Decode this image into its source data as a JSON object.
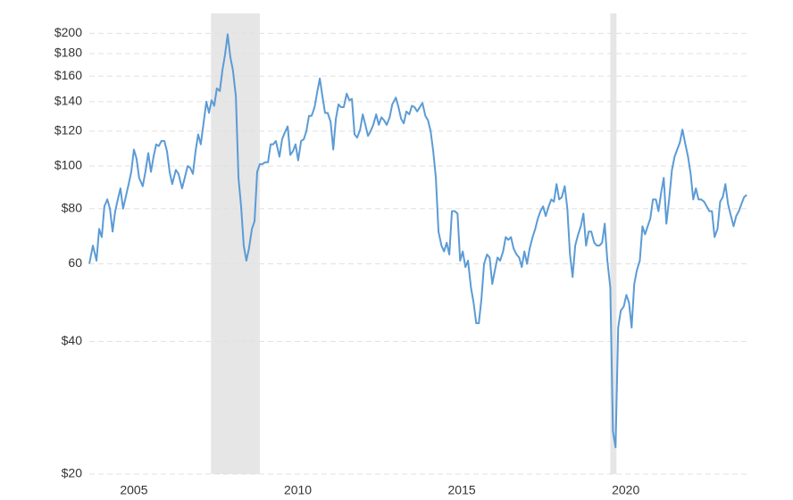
{
  "chart_data": {
    "type": "line",
    "log_y": true,
    "grid": true,
    "shaded_ranges": [
      [
        2007.35,
        2008.84
      ],
      [
        2019.53,
        2019.72
      ]
    ],
    "shade_color": "#e6e6e6",
    "xlim": [
      2003.64,
      2023.74
    ],
    "xticks": [
      2005,
      2010,
      2015,
      2020
    ],
    "ylim": [
      20,
      222
    ],
    "yticks": [
      {
        "value": 20,
        "label": "$20"
      },
      {
        "value": 40,
        "label": "$40"
      },
      60,
      {
        "value": 80,
        "label": "$80"
      },
      {
        "value": 100,
        "label": "$100"
      },
      {
        "value": 120,
        "label": "$120"
      },
      {
        "value": 140,
        "label": "$140"
      },
      {
        "value": 160,
        "label": "$160"
      },
      {
        "value": 180,
        "label": "$180"
      },
      {
        "value": 200,
        "label": "$200"
      }
    ],
    "x": [
      2003.64,
      2003.75,
      2003.86,
      2003.94,
      2004.02,
      2004.1,
      2004.19,
      2004.27,
      2004.35,
      2004.43,
      2004.51,
      2004.59,
      2004.67,
      2004.75,
      2004.84,
      2004.92,
      2005.0,
      2005.08,
      2005.16,
      2005.27,
      2005.35,
      2005.44,
      2005.52,
      2005.6,
      2005.68,
      2005.76,
      2005.84,
      2005.93,
      2006.01,
      2006.09,
      2006.17,
      2006.28,
      2006.36,
      2006.47,
      2006.55,
      2006.64,
      2006.72,
      2006.8,
      2006.88,
      2006.96,
      2007.04,
      2007.13,
      2007.21,
      2007.29,
      2007.37,
      2007.45,
      2007.53,
      2007.62,
      2007.7,
      2007.78,
      2007.86,
      2007.94,
      2008.02,
      2008.11,
      2008.19,
      2008.27,
      2008.35,
      2008.43,
      2008.51,
      2008.6,
      2008.68,
      2008.76,
      2008.84,
      2008.92,
      2009.0,
      2009.09,
      2009.17,
      2009.25,
      2009.33,
      2009.44,
      2009.52,
      2009.6,
      2009.69,
      2009.77,
      2009.85,
      2009.93,
      2010.01,
      2010.1,
      2010.18,
      2010.26,
      2010.34,
      2010.42,
      2010.51,
      2010.59,
      2010.67,
      2010.75,
      2010.83,
      2010.91,
      2011.0,
      2011.08,
      2011.16,
      2011.24,
      2011.32,
      2011.4,
      2011.49,
      2011.57,
      2011.65,
      2011.73,
      2011.81,
      2011.9,
      2011.98,
      2012.06,
      2012.14,
      2012.22,
      2012.3,
      2012.39,
      2012.47,
      2012.55,
      2012.63,
      2012.71,
      2012.8,
      2012.88,
      2012.99,
      2013.07,
      2013.15,
      2013.23,
      2013.31,
      2013.4,
      2013.48,
      2013.56,
      2013.64,
      2013.72,
      2013.8,
      2013.89,
      2013.97,
      2014.05,
      2014.13,
      2014.21,
      2014.29,
      2014.38,
      2014.46,
      2014.54,
      2014.62,
      2014.7,
      2014.79,
      2014.87,
      2014.95,
      2015.03,
      2015.11,
      2015.19,
      2015.28,
      2015.36,
      2015.44,
      2015.52,
      2015.6,
      2015.68,
      2015.77,
      2015.85,
      2015.93,
      2016.01,
      2016.09,
      2016.17,
      2016.26,
      2016.34,
      2016.42,
      2016.5,
      2016.58,
      2016.67,
      2016.75,
      2016.83,
      2016.91,
      2016.99,
      2017.07,
      2017.16,
      2017.24,
      2017.32,
      2017.4,
      2017.48,
      2017.56,
      2017.65,
      2017.73,
      2017.81,
      2017.89,
      2017.97,
      2018.05,
      2018.14,
      2018.22,
      2018.3,
      2018.38,
      2018.46,
      2018.55,
      2018.63,
      2018.71,
      2018.79,
      2018.87,
      2018.95,
      2019.04,
      2019.12,
      2019.2,
      2019.28,
      2019.36,
      2019.44,
      2019.53,
      2019.61,
      2019.69,
      2019.77,
      2019.85,
      2019.94,
      2020.02,
      2020.1,
      2020.18,
      2020.26,
      2020.34,
      2020.43,
      2020.51,
      2020.59,
      2020.67,
      2020.75,
      2020.83,
      2020.92,
      2021.0,
      2021.08,
      2021.16,
      2021.24,
      2021.33,
      2021.41,
      2021.49,
      2021.57,
      2021.65,
      2021.73,
      2021.81,
      2021.9,
      2021.98,
      2022.06,
      2022.14,
      2022.22,
      2022.3,
      2022.39,
      2022.47,
      2022.55,
      2022.63,
      2022.71,
      2022.8,
      2022.88,
      2022.96,
      2023.04,
      2023.12,
      2023.21,
      2023.29,
      2023.37,
      2023.45,
      2023.53,
      2023.61,
      2023.69
    ],
    "series": [
      {
        "color": "#5b9bd5",
        "values": [
          60,
          66,
          61,
          72,
          69,
          81,
          84,
          80,
          71,
          79,
          84,
          89,
          80,
          85,
          91,
          97,
          109,
          104,
          94,
          90,
          97,
          107,
          97,
          105,
          112,
          111,
          114,
          114,
          108,
          97,
          91,
          98,
          96,
          89,
          94,
          100,
          99,
          96,
          108,
          118,
          112,
          126,
          140,
          132,
          141,
          137,
          150,
          148,
          165,
          179,
          199,
          177,
          165,
          144,
          94,
          81,
          66,
          61,
          65,
          72,
          75,
          97,
          101,
          101,
          102,
          102,
          112,
          112,
          114,
          105,
          115,
          119,
          123,
          106,
          108,
          112,
          103,
          114,
          115,
          120,
          130,
          130,
          136,
          147,
          158,
          144,
          132,
          132,
          126,
          109,
          128,
          138,
          136,
          136,
          146,
          141,
          142,
          118,
          116,
          121,
          131,
          124,
          117,
          120,
          124,
          131,
          124,
          129,
          127,
          124,
          129,
          138,
          143,
          136,
          128,
          125,
          133,
          131,
          137,
          136,
          133,
          136,
          139,
          130,
          127,
          120,
          108,
          94,
          71,
          66,
          64,
          67,
          63,
          79,
          79,
          78,
          61,
          64,
          59,
          61,
          53,
          49,
          44,
          44,
          50,
          60,
          63,
          62,
          54,
          58,
          62,
          61,
          64,
          69,
          68,
          69,
          65,
          63,
          62,
          59,
          64,
          60,
          65,
          69,
          72,
          76,
          79,
          81,
          77,
          81,
          84,
          83,
          91,
          84,
          85,
          90,
          80,
          63,
          56,
          66,
          70,
          73,
          78,
          66,
          71,
          71,
          67,
          66,
          66,
          67,
          74,
          61,
          53,
          25,
          23,
          43,
          47,
          48,
          51,
          49,
          43,
          54,
          58,
          61,
          73,
          70,
          73,
          76,
          84,
          84,
          79,
          87,
          94,
          74,
          85,
          98,
          105,
          109,
          113,
          121,
          113,
          105,
          96,
          84,
          89,
          84,
          84,
          83,
          81,
          79,
          79,
          69,
          72,
          83,
          85,
          91,
          82,
          77,
          73,
          77,
          79,
          82,
          85,
          86
        ]
      }
    ]
  }
}
